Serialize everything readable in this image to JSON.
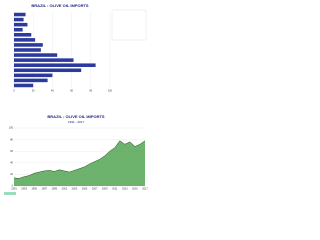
{
  "chart_data": [
    {
      "type": "barh",
      "title": "BRAZIL : OLIVE OIL IMPORTS",
      "categories": [
        null,
        null,
        null,
        null,
        null,
        null,
        null,
        null,
        null,
        null,
        null,
        null,
        null,
        null,
        null
      ],
      "values": [
        12,
        10,
        14,
        9,
        18,
        22,
        30,
        28,
        45,
        62,
        85,
        70,
        40,
        35,
        20
      ],
      "color": "#2b3a9b",
      "xlim": [
        0,
        100
      ],
      "xticks": [
        0,
        20,
        40,
        60,
        80,
        100
      ],
      "grid": true
    },
    {
      "type": "area",
      "title": "BRAZIL : OLIVE OIL IMPORTS",
      "subtitle": "1991 - 2017",
      "x": [
        1991,
        1992,
        1993,
        1994,
        1995,
        1996,
        1997,
        1998,
        1999,
        2000,
        2001,
        2002,
        2003,
        2004,
        2005,
        2006,
        2007,
        2008,
        2009,
        2010,
        2011,
        2012,
        2013,
        2014,
        2015,
        2016,
        2017
      ],
      "values": [
        14,
        13,
        16,
        18,
        22,
        24,
        26,
        27,
        25,
        28,
        26,
        24,
        27,
        30,
        33,
        38,
        42,
        46,
        52,
        60,
        66,
        78,
        72,
        76,
        68,
        72,
        78
      ],
      "color": "#3c9a3c",
      "xlim": [
        1991,
        2017
      ],
      "ylim": [
        0,
        100
      ],
      "yticks": [
        0,
        20,
        40,
        60,
        80,
        100
      ],
      "grid": true
    }
  ]
}
